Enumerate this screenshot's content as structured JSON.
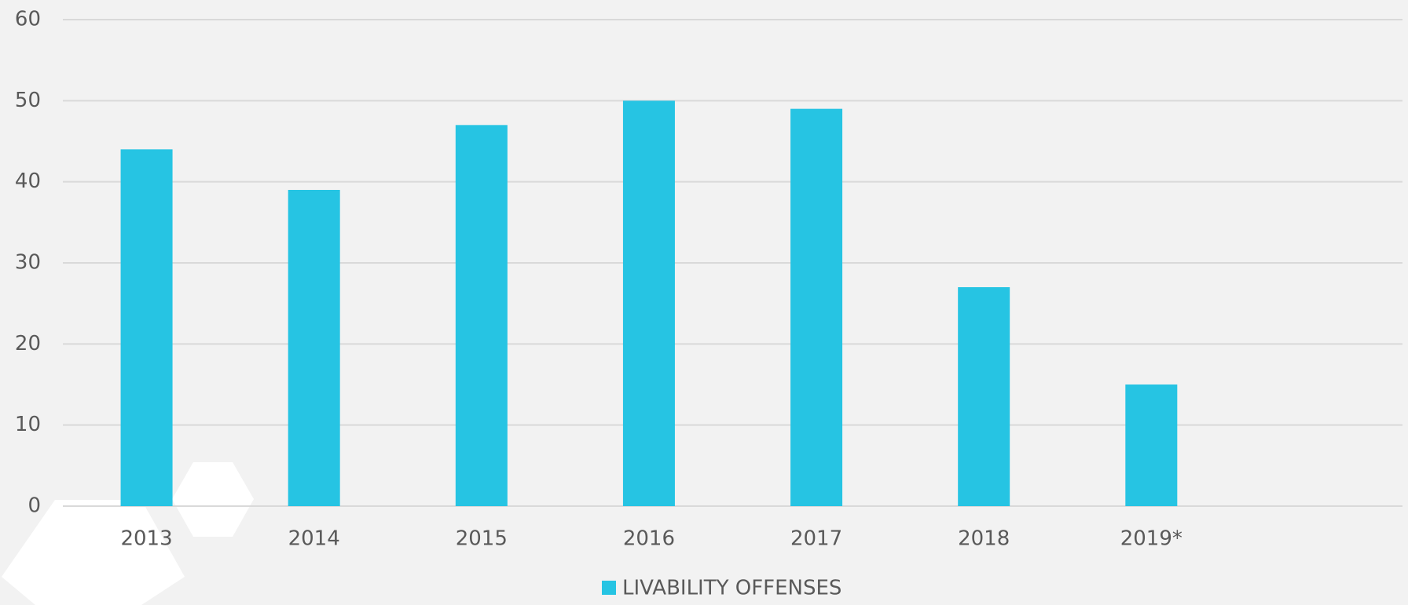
{
  "chart_data": {
    "type": "bar",
    "categories": [
      "2013",
      "2014",
      "2015",
      "2016",
      "2017",
      "2018",
      "2019*",
      null
    ],
    "series": [
      {
        "name": "LIVABILITY OFFENSES",
        "color": "#26c4e3",
        "values": [
          44,
          39,
          47,
          50,
          49,
          27,
          15,
          null
        ]
      }
    ],
    "ylim": [
      0,
      60
    ],
    "yticks": [
      0,
      10,
      20,
      30,
      40,
      50,
      60
    ],
    "grid": true,
    "legend": "bottom"
  }
}
